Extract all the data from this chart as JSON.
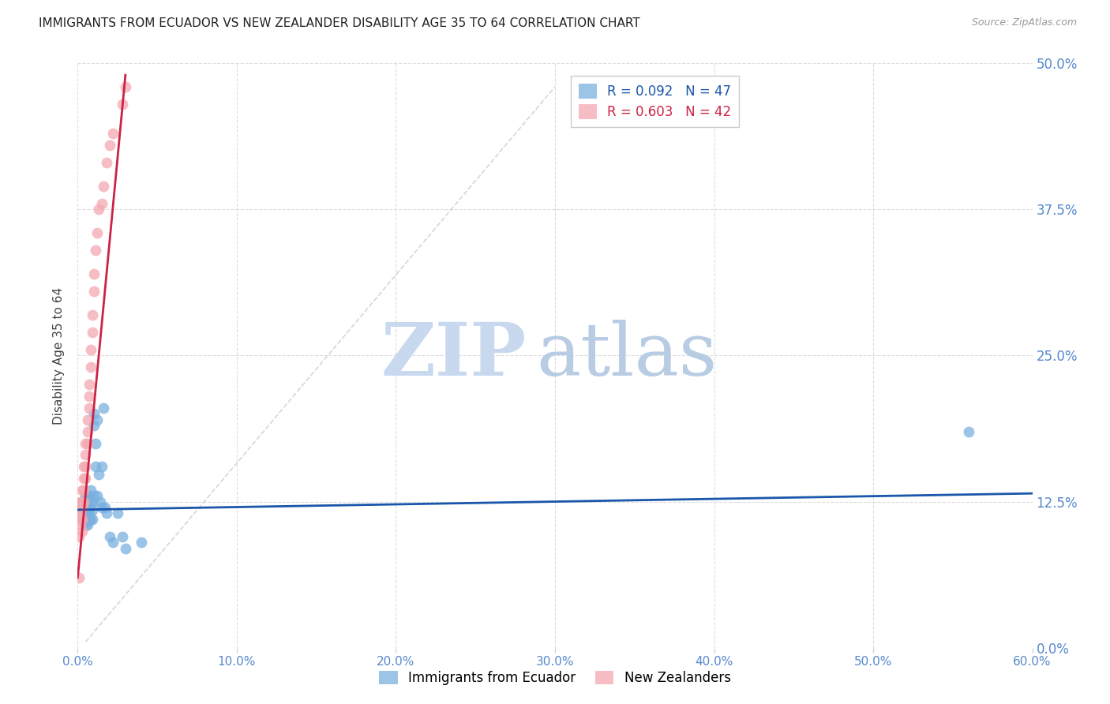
{
  "title": "IMMIGRANTS FROM ECUADOR VS NEW ZEALANDER DISABILITY AGE 35 TO 64 CORRELATION CHART",
  "source": "Source: ZipAtlas.com",
  "xlabel_vals": [
    0.0,
    0.1,
    0.2,
    0.3,
    0.4,
    0.5,
    0.6
  ],
  "ylabel_vals": [
    0.0,
    0.125,
    0.25,
    0.375,
    0.5
  ],
  "ylabel_labels": [
    "0.0%",
    "12.5%",
    "25.0%",
    "37.5%",
    "50.0%"
  ],
  "xlim": [
    0.0,
    0.6
  ],
  "ylim": [
    0.0,
    0.5
  ],
  "legend1_label": "R = 0.092   N = 47",
  "legend2_label": "R = 0.603   N = 42",
  "series1_color": "#7ab0e0",
  "series2_color": "#f4a8b0",
  "trendline1_color": "#1a56aa",
  "trendline2_color": "#cc2244",
  "watermark_zip": "ZIP",
  "watermark_atlas": "atlas",
  "watermark_color": "#c8d8ee",
  "ylabel": "Disability Age 35 to 64",
  "title_fontsize": 11,
  "source_fontsize": 9,
  "series1_x": [
    0.003,
    0.003,
    0.004,
    0.004,
    0.004,
    0.005,
    0.005,
    0.005,
    0.005,
    0.005,
    0.006,
    0.006,
    0.006,
    0.006,
    0.006,
    0.006,
    0.007,
    0.007,
    0.007,
    0.007,
    0.008,
    0.008,
    0.008,
    0.009,
    0.009,
    0.009,
    0.01,
    0.01,
    0.01,
    0.011,
    0.011,
    0.012,
    0.012,
    0.013,
    0.014,
    0.015,
    0.015,
    0.016,
    0.017,
    0.018,
    0.02,
    0.022,
    0.025,
    0.028,
    0.03,
    0.04,
    0.56
  ],
  "series1_y": [
    0.115,
    0.125,
    0.12,
    0.112,
    0.108,
    0.13,
    0.122,
    0.115,
    0.11,
    0.105,
    0.13,
    0.125,
    0.118,
    0.112,
    0.108,
    0.105,
    0.13,
    0.12,
    0.115,
    0.11,
    0.135,
    0.125,
    0.11,
    0.125,
    0.118,
    0.11,
    0.2,
    0.19,
    0.13,
    0.175,
    0.155,
    0.195,
    0.13,
    0.148,
    0.125,
    0.155,
    0.12,
    0.205,
    0.12,
    0.115,
    0.095,
    0.09,
    0.115,
    0.095,
    0.085,
    0.09,
    0.185
  ],
  "series2_x": [
    0.001,
    0.001,
    0.002,
    0.002,
    0.002,
    0.002,
    0.002,
    0.003,
    0.003,
    0.003,
    0.003,
    0.003,
    0.004,
    0.004,
    0.004,
    0.004,
    0.005,
    0.005,
    0.005,
    0.005,
    0.006,
    0.006,
    0.006,
    0.007,
    0.007,
    0.007,
    0.008,
    0.008,
    0.009,
    0.009,
    0.01,
    0.01,
    0.011,
    0.012,
    0.013,
    0.015,
    0.016,
    0.018,
    0.02,
    0.022,
    0.028,
    0.03
  ],
  "series2_y": [
    0.095,
    0.06,
    0.125,
    0.12,
    0.115,
    0.11,
    0.105,
    0.135,
    0.125,
    0.12,
    0.11,
    0.1,
    0.155,
    0.145,
    0.135,
    0.125,
    0.175,
    0.165,
    0.155,
    0.145,
    0.195,
    0.185,
    0.175,
    0.225,
    0.215,
    0.205,
    0.255,
    0.24,
    0.285,
    0.27,
    0.32,
    0.305,
    0.34,
    0.355,
    0.375,
    0.38,
    0.395,
    0.415,
    0.43,
    0.44,
    0.465,
    0.48
  ],
  "trendline1_x": [
    0.0,
    0.6
  ],
  "trendline1_y": [
    0.118,
    0.132
  ],
  "trendline2_x": [
    0.0,
    0.03
  ],
  "trendline2_y": [
    0.06,
    0.49
  ],
  "dashed_line_x": [
    0.005,
    0.3
  ],
  "dashed_line_y": [
    0.005,
    0.48
  ]
}
